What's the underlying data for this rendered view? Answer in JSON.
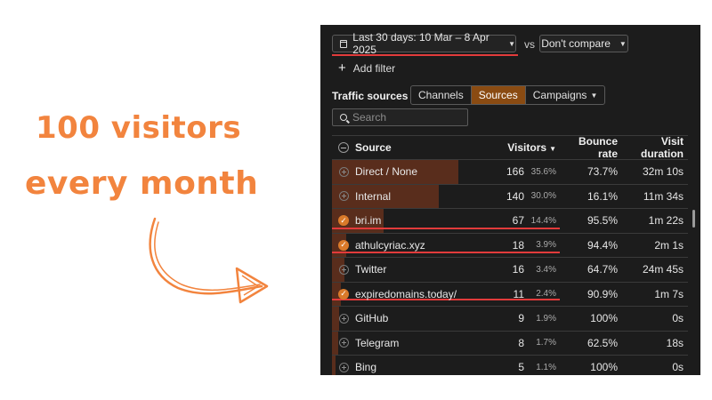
{
  "annotation": {
    "line1": "100 visitors",
    "line2": "every month"
  },
  "toolbar": {
    "date_range": "Last 30 days: 10 Mar – 8 Apr 2025",
    "vs": "vs",
    "compare": "Don't compare",
    "add_filter": "Add filter"
  },
  "traffic": {
    "label": "Traffic sources",
    "tabs": [
      "Channels",
      "Sources",
      "Campaigns"
    ],
    "active_tab": "Sources",
    "search_placeholder": "Search"
  },
  "table": {
    "headers": {
      "source": "Source",
      "visitors": "Visitors",
      "bounce": "Bounce rate",
      "duration": "Visit duration"
    },
    "rows": [
      {
        "source": "Direct / None",
        "visitors": "166",
        "pct": "35.6%",
        "bounce": "73.7%",
        "duration": "32m 10s",
        "share": 0.356,
        "selected": false
      },
      {
        "source": "Internal",
        "visitors": "140",
        "pct": "30.0%",
        "bounce": "16.1%",
        "duration": "11m 34s",
        "share": 0.3,
        "selected": false
      },
      {
        "source": "bri.im",
        "visitors": "67",
        "pct": "14.4%",
        "bounce": "95.5%",
        "duration": "1m 22s",
        "share": 0.144,
        "selected": true
      },
      {
        "source": "athulcyriac.xyz",
        "visitors": "18",
        "pct": "3.9%",
        "bounce": "94.4%",
        "duration": "2m 1s",
        "share": 0.039,
        "selected": true
      },
      {
        "source": "Twitter",
        "visitors": "16",
        "pct": "3.4%",
        "bounce": "64.7%",
        "duration": "24m 45s",
        "share": 0.034,
        "selected": false
      },
      {
        "source": "expiredomains.today/",
        "visitors": "11",
        "pct": "2.4%",
        "bounce": "90.9%",
        "duration": "1m 7s",
        "share": 0.024,
        "selected": true
      },
      {
        "source": "GitHub",
        "visitors": "9",
        "pct": "1.9%",
        "bounce": "100%",
        "duration": "0s",
        "share": 0.019,
        "selected": false
      },
      {
        "source": "Telegram",
        "visitors": "8",
        "pct": "1.7%",
        "bounce": "62.5%",
        "duration": "18s",
        "share": 0.017,
        "selected": false
      },
      {
        "source": "Bing",
        "visitors": "5",
        "pct": "1.1%",
        "bounce": "100%",
        "duration": "0s",
        "share": 0.011,
        "selected": false
      }
    ]
  },
  "colors": {
    "accent": "#f2843e",
    "highlight_line": "#e23b3b",
    "panel_bg": "#1c1c1c",
    "active_tab": "#8a4b12"
  }
}
